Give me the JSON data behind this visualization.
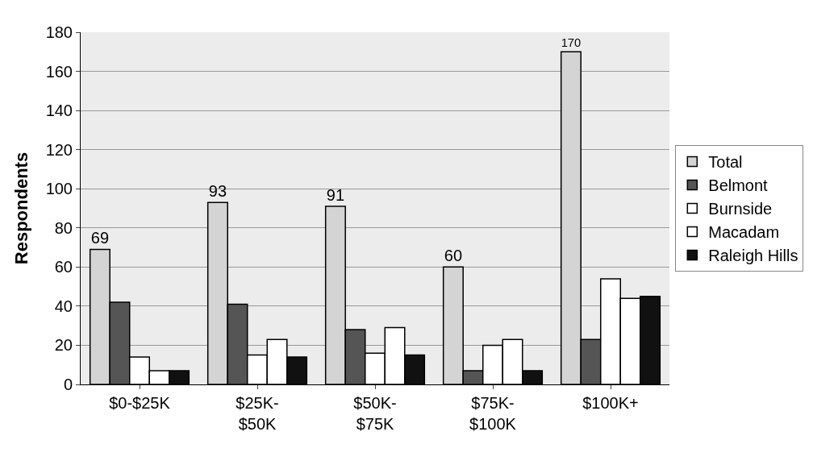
{
  "chart_data": {
    "type": "bar",
    "ylabel": "Respondents",
    "categories": [
      "$0-$25K",
      "$25K-\n$50K",
      "$50K-\n$75K",
      "$75K-\n$100K",
      "$100K+"
    ],
    "series": [
      {
        "name": "Total",
        "color": "#d4d4d4",
        "values": [
          69,
          93,
          91,
          60,
          170
        ],
        "value_labels": [
          "69",
          "93",
          "91",
          "60",
          "170"
        ]
      },
      {
        "name": "Belmont",
        "color": "#555555",
        "values": [
          42,
          41,
          28,
          7,
          23
        ]
      },
      {
        "name": "Burnside",
        "color": "#ffffff",
        "values": [
          14,
          15,
          16,
          20,
          54
        ]
      },
      {
        "name": "Macadam",
        "color": "#ffffff",
        "values": [
          7,
          23,
          29,
          23,
          44
        ]
      },
      {
        "name": "Raleigh Hills",
        "color": "#111111",
        "values": [
          7,
          14,
          15,
          7,
          45
        ]
      }
    ],
    "ylim": [
      0,
      180
    ],
    "yticks": [
      0,
      20,
      40,
      60,
      80,
      100,
      120,
      140,
      160,
      180
    ],
    "grid": "y",
    "legend": "right"
  }
}
